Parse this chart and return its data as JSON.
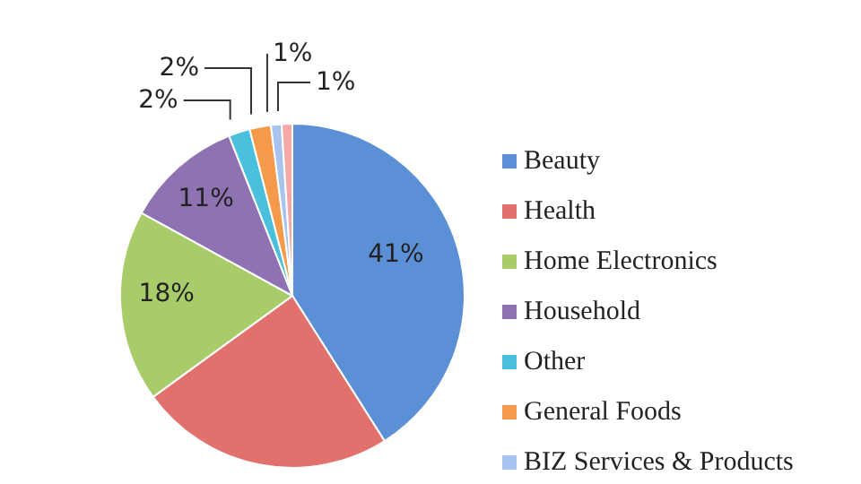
{
  "chart_data": {
    "type": "pie",
    "categories": [
      "Beauty",
      "Health",
      "Home Electronics",
      "Household",
      "Other",
      "General Foods",
      "BIZ Services & Products",
      null
    ],
    "values": [
      41,
      24,
      18,
      11,
      2,
      2,
      1,
      1
    ],
    "colors": [
      "#5b8fd6",
      "#e2706d",
      "#a9cc6a",
      "#8e72b2",
      "#4bc0dc",
      "#f59a4a",
      "#a8c4ee",
      "#f4a9a8"
    ],
    "value_labels": [
      "41%",
      null,
      "18%",
      "11%",
      "2%",
      "2%",
      "1%",
      "1%"
    ],
    "legend": "right"
  }
}
